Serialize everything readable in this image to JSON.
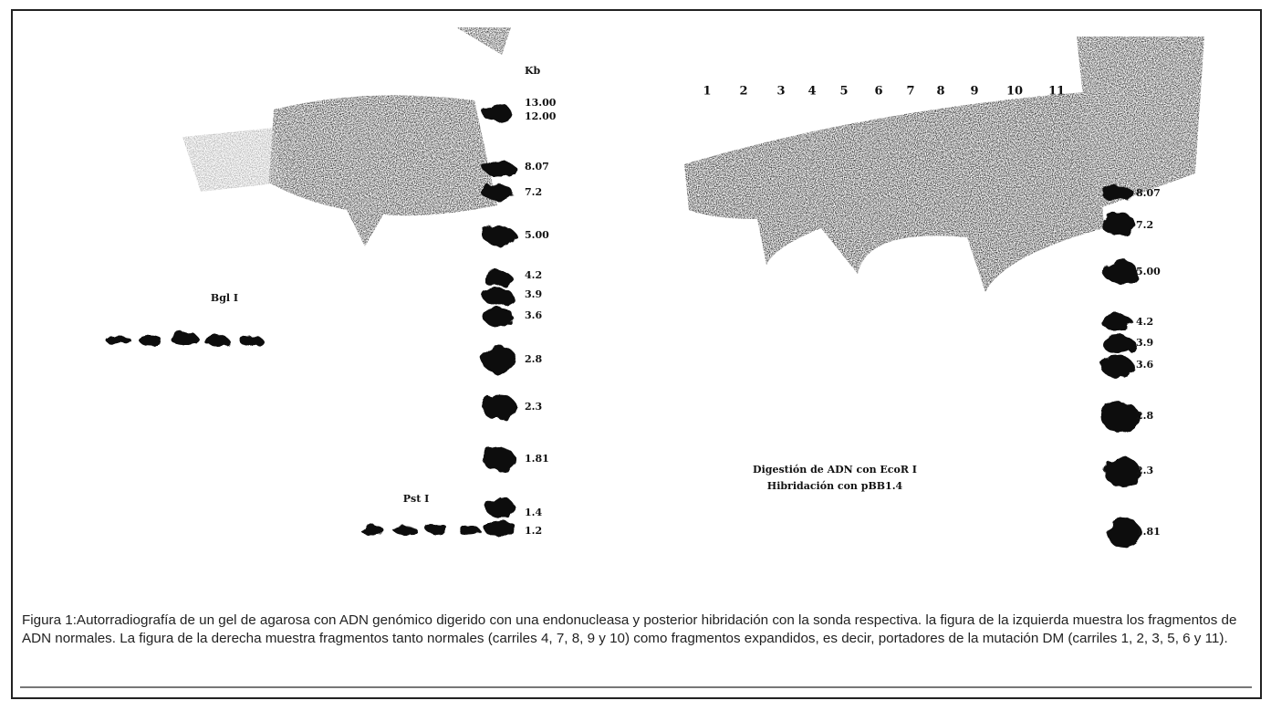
{
  "left_gel": {
    "unit": "Kb",
    "markers": [
      "13.00",
      "12.00",
      "8.07",
      "7.2",
      "5.00",
      "4.2",
      "3.9",
      "3.6",
      "2.8",
      "2.3",
      "1.81",
      "1.4",
      "1.2"
    ],
    "enzyme_labels": [
      "Bgl I",
      "Pst I"
    ]
  },
  "right_gel": {
    "lanes": [
      "1",
      "2",
      "3",
      "4",
      "5",
      "6",
      "7",
      "8",
      "9",
      "10",
      "11"
    ],
    "markers": [
      "8.07",
      "7.2",
      "5.00",
      "4.2",
      "3.9",
      "3.6",
      "2.8",
      "2.3",
      "1.81"
    ],
    "note": [
      "Digestión de ADN con EcoR I",
      "Hibridación con pBB1.4"
    ]
  },
  "caption": "Figura 1:Autorradiografía de un gel de agarosa con ADN genómico digerido con una endonucleasa y posterior hibridación con la sonda respectiva. la figura de la izquierda muestra los fragmentos de ADN normales. La figura de la derecha muestra fragmentos tanto normales (carriles 4, 7, 8, 9 y 10) como fragmentos expandidos, es decir, portadores de la mutación DM (carriles 1, 2, 3, 5, 6 y 11)."
}
